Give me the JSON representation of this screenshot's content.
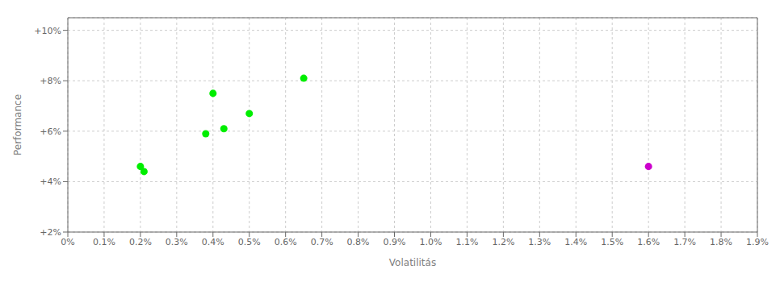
{
  "chart_data": {
    "type": "scatter",
    "xlabel": "Volatilitás",
    "ylabel": "Performance",
    "xlim": [
      0.0,
      0.019
    ],
    "ylim": [
      0.02,
      0.105
    ],
    "xticks": [
      {
        "value": 0,
        "label": "0%"
      },
      {
        "value": 0.001,
        "label": "0.1%"
      },
      {
        "value": 0.002,
        "label": "0.2%"
      },
      {
        "value": 0.003,
        "label": "0.3%"
      },
      {
        "value": 0.004,
        "label": "0.4%"
      },
      {
        "value": 0.005,
        "label": "0.5%"
      },
      {
        "value": 0.006,
        "label": "0.6%"
      },
      {
        "value": 0.007,
        "label": "0.7%"
      },
      {
        "value": 0.008,
        "label": "0.8%"
      },
      {
        "value": 0.009,
        "label": "0.9%"
      },
      {
        "value": 0.01,
        "label": "1.0%"
      },
      {
        "value": 0.011,
        "label": "1.1%"
      },
      {
        "value": 0.012,
        "label": "1.2%"
      },
      {
        "value": 0.013,
        "label": "1.3%"
      },
      {
        "value": 0.014,
        "label": "1.4%"
      },
      {
        "value": 0.015,
        "label": "1.5%"
      },
      {
        "value": 0.016,
        "label": "1.6%"
      },
      {
        "value": 0.017,
        "label": "1.7%"
      },
      {
        "value": 0.018,
        "label": "1.8%"
      },
      {
        "value": 0.019,
        "label": "1.9%"
      }
    ],
    "yticks": [
      {
        "value": 0.02,
        "label": "+2%"
      },
      {
        "value": 0.04,
        "label": "+4%"
      },
      {
        "value": 0.06,
        "label": "+6%"
      },
      {
        "value": 0.08,
        "label": "+8%"
      },
      {
        "value": 0.1,
        "label": "+10%"
      }
    ],
    "grid": true,
    "series": [
      {
        "color": "#00ee00",
        "x": [
          0.002,
          0.0021,
          0.004,
          0.0038,
          0.0043,
          0.005,
          0.0065
        ],
        "y": [
          0.046,
          0.044,
          0.075,
          0.059,
          0.061,
          0.067,
          0.081
        ]
      },
      {
        "color": "#cc00cc",
        "x": [
          0.016
        ],
        "y": [
          0.046
        ]
      }
    ]
  }
}
